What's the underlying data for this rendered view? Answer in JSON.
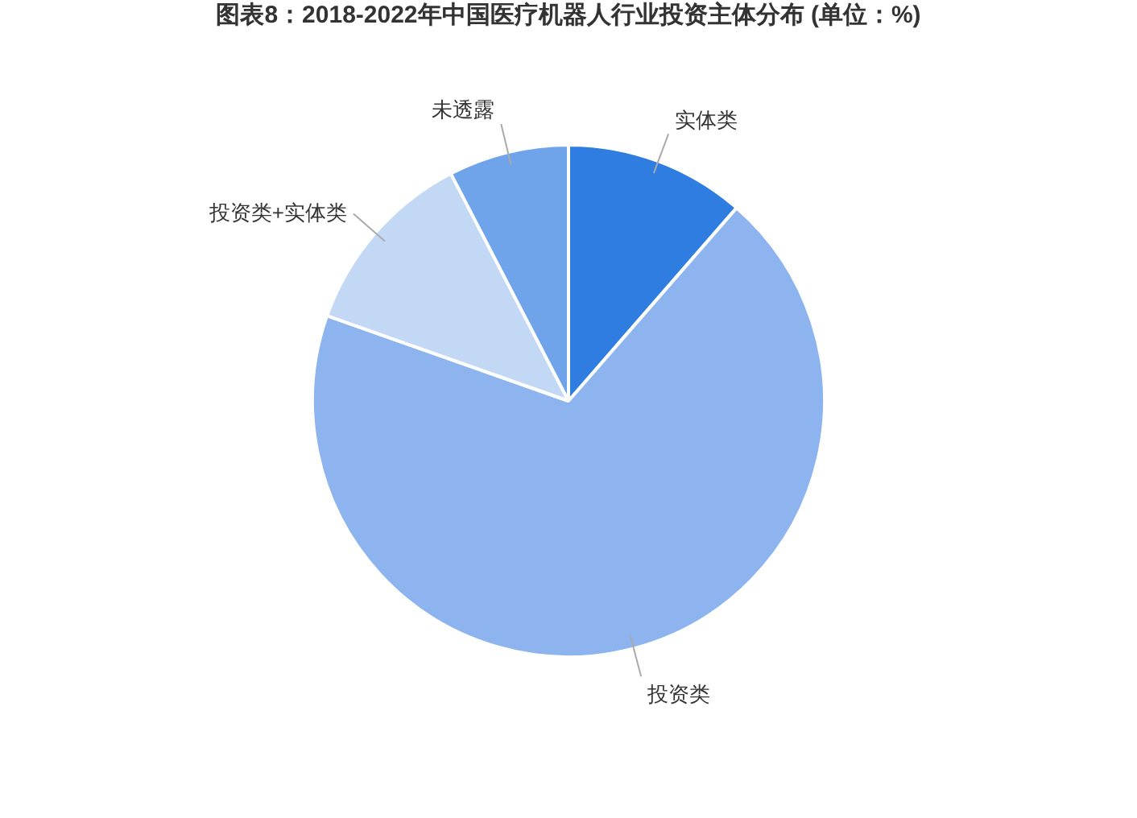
{
  "chart_data": {
    "type": "pie",
    "title": "图表8：2018-2022年中国医疗机器人行业投资主体分布 (单位：%)",
    "categories": [
      "实体类",
      "投资类",
      "投资类+实体类",
      "未透露"
    ],
    "values": [
      11.4,
      69,
      12,
      7.6
    ],
    "colors": [
      "#2f7de1",
      "#8db4ee",
      "#c2d8f5",
      "#6fa3ea"
    ],
    "legend": false
  }
}
